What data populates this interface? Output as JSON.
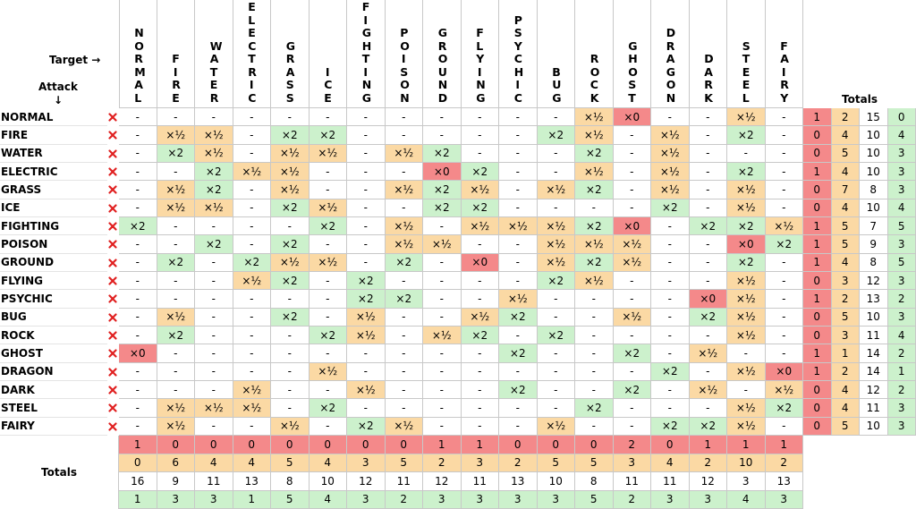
{
  "labels": {
    "target": "Target →",
    "attack": "Attack\n↓",
    "row_totals": "Totals",
    "column_totals": "Totals"
  },
  "columns": [
    "NORMAL",
    "FIRE",
    "WATER",
    "ELECTRIC",
    "GRASS",
    "ICE",
    "FIGHTING",
    "POISON",
    "GROUND",
    "FLYING",
    "PSYCHIC",
    "BUG",
    "ROCK",
    "GHOST",
    "DRAGON",
    "DARK",
    "STEEL",
    "FAIRY"
  ],
  "colors": {
    "×0": "#f4898a",
    "×½": "#fbd9a4",
    "×2": "#ccf1cc"
  },
  "totals_colors": [
    "#f4898a",
    "#fbd9a4",
    "#ffffff",
    "#ccf1cc"
  ],
  "rows": [
    {
      "name": "NORMAL",
      "cells": [
        "-",
        "-",
        "-",
        "-",
        "-",
        "-",
        "-",
        "-",
        "-",
        "-",
        "-",
        "-",
        "×½",
        "×0",
        "-",
        "-",
        "×½",
        "-"
      ],
      "totals": [
        1,
        2,
        15,
        0
      ]
    },
    {
      "name": "FIRE",
      "cells": [
        "-",
        "×½",
        "×½",
        "-",
        "×2",
        "×2",
        "-",
        "-",
        "-",
        "-",
        "-",
        "×2",
        "×½",
        "-",
        "×½",
        "-",
        "×2",
        "-"
      ],
      "totals": [
        0,
        4,
        10,
        4
      ]
    },
    {
      "name": "WATER",
      "cells": [
        "-",
        "×2",
        "×½",
        "-",
        "×½",
        "×½",
        "-",
        "×½",
        "×2",
        "-",
        "-",
        "-",
        "×2",
        "-",
        "×½",
        "-",
        "-",
        "-"
      ],
      "totals": [
        0,
        5,
        10,
        3
      ]
    },
    {
      "name": "ELECTRIC",
      "cells": [
        "-",
        "-",
        "×2",
        "×½",
        "×½",
        "-",
        "-",
        "-",
        "×0",
        "×2",
        "-",
        "-",
        "×½",
        "-",
        "×½",
        "-",
        "×2",
        "-"
      ],
      "totals": [
        1,
        4,
        10,
        3
      ]
    },
    {
      "name": "GRASS",
      "cells": [
        "-",
        "×½",
        "×2",
        "-",
        "×½",
        "-",
        "-",
        "×½",
        "×2",
        "×½",
        "-",
        "×½",
        "×2",
        "-",
        "×½",
        "-",
        "×½",
        "-"
      ],
      "totals": [
        0,
        7,
        8,
        3
      ]
    },
    {
      "name": "ICE",
      "cells": [
        "-",
        "×½",
        "×½",
        "-",
        "×2",
        "×½",
        "-",
        "-",
        "×2",
        "×2",
        "-",
        "-",
        "-",
        "-",
        "×2",
        "-",
        "×½",
        "-"
      ],
      "totals": [
        0,
        4,
        10,
        4
      ]
    },
    {
      "name": "FIGHTING",
      "cells": [
        "×2",
        "-",
        "-",
        "-",
        "-",
        "×2",
        "-",
        "×½",
        "-",
        "×½",
        "×½",
        "×½",
        "×2",
        "×0",
        "-",
        "×2",
        "×2",
        "×½"
      ],
      "totals": [
        1,
        5,
        7,
        5
      ]
    },
    {
      "name": "POISON",
      "cells": [
        "-",
        "-",
        "×2",
        "-",
        "×2",
        "-",
        "-",
        "×½",
        "×½",
        "-",
        "-",
        "×½",
        "×½",
        "×½",
        "-",
        "-",
        "×0",
        "×2"
      ],
      "totals": [
        1,
        5,
        9,
        3
      ]
    },
    {
      "name": "GROUND",
      "cells": [
        "-",
        "×2",
        "-",
        "×2",
        "×½",
        "×½",
        "-",
        "×2",
        "-",
        "×0",
        "-",
        "×½",
        "×2",
        "×½",
        "-",
        "-",
        "×2",
        "-"
      ],
      "totals": [
        1,
        4,
        8,
        5
      ]
    },
    {
      "name": "FLYING",
      "cells": [
        "-",
        "-",
        "-",
        "×½",
        "×2",
        "-",
        "×2",
        "-",
        "-",
        "-",
        "-",
        "×2",
        "×½",
        "-",
        "-",
        "-",
        "×½",
        "-"
      ],
      "totals": [
        0,
        3,
        12,
        3
      ]
    },
    {
      "name": "PSYCHIC",
      "cells": [
        "-",
        "-",
        "-",
        "-",
        "-",
        "-",
        "×2",
        "×2",
        "-",
        "-",
        "×½",
        "-",
        "-",
        "-",
        "-",
        "×0",
        "×½",
        "-"
      ],
      "totals": [
        1,
        2,
        13,
        2
      ]
    },
    {
      "name": "BUG",
      "cells": [
        "-",
        "×½",
        "-",
        "-",
        "×2",
        "-",
        "×½",
        "-",
        "-",
        "×½",
        "×2",
        "-",
        "-",
        "×½",
        "-",
        "×2",
        "×½",
        "-"
      ],
      "totals": [
        0,
        5,
        10,
        3
      ]
    },
    {
      "name": "ROCK",
      "cells": [
        "-",
        "×2",
        "-",
        "-",
        "-",
        "×2",
        "×½",
        "-",
        "×½",
        "×2",
        "-",
        "×2",
        "-",
        "-",
        "-",
        "-",
        "×½",
        "-"
      ],
      "totals": [
        0,
        3,
        11,
        4
      ]
    },
    {
      "name": "GHOST",
      "cells": [
        "×0",
        "-",
        "-",
        "-",
        "-",
        "-",
        "-",
        "-",
        "-",
        "-",
        "×2",
        "-",
        "-",
        "×2",
        "-",
        "×½",
        "-",
        "-"
      ],
      "totals": [
        1,
        1,
        14,
        2
      ]
    },
    {
      "name": "DRAGON",
      "cells": [
        "-",
        "-",
        "-",
        "-",
        "-",
        "×½",
        "-",
        "-",
        "-",
        "-",
        "-",
        "-",
        "-",
        "-",
        "×2",
        "-",
        "×½",
        "×0"
      ],
      "totals": [
        1,
        2,
        14,
        1
      ]
    },
    {
      "name": "DARK",
      "cells": [
        "-",
        "-",
        "-",
        "×½",
        "-",
        "-",
        "×½",
        "-",
        "-",
        "-",
        "×2",
        "-",
        "-",
        "×2",
        "-",
        "×½",
        "-",
        "×½"
      ],
      "totals": [
        0,
        4,
        12,
        2
      ]
    },
    {
      "name": "STEEL",
      "cells": [
        "-",
        "×½",
        "×½",
        "×½",
        "-",
        "×2",
        "-",
        "-",
        "-",
        "-",
        "-",
        "-",
        "×2",
        "-",
        "-",
        "-",
        "×½",
        "×2"
      ],
      "totals": [
        0,
        4,
        11,
        3
      ]
    },
    {
      "name": "FAIRY",
      "cells": [
        "-",
        "×½",
        "-",
        "-",
        "×½",
        "-",
        "×2",
        "×½",
        "-",
        "-",
        "-",
        "×½",
        "-",
        "-",
        "×2",
        "×2",
        "×½",
        "-"
      ],
      "totals": [
        0,
        5,
        10,
        3
      ]
    }
  ],
  "column_totals": [
    [
      1,
      0,
      0,
      0,
      0,
      0,
      0,
      0,
      1,
      1,
      0,
      0,
      0,
      2,
      0,
      1,
      1,
      1
    ],
    [
      0,
      6,
      4,
      4,
      5,
      4,
      3,
      5,
      2,
      3,
      2,
      5,
      5,
      3,
      4,
      2,
      10,
      2
    ],
    [
      16,
      9,
      11,
      13,
      8,
      10,
      12,
      11,
      12,
      11,
      13,
      10,
      8,
      11,
      11,
      12,
      3,
      13
    ],
    [
      1,
      3,
      3,
      1,
      5,
      4,
      3,
      2,
      3,
      3,
      3,
      3,
      5,
      2,
      3,
      3,
      4,
      3
    ]
  ]
}
